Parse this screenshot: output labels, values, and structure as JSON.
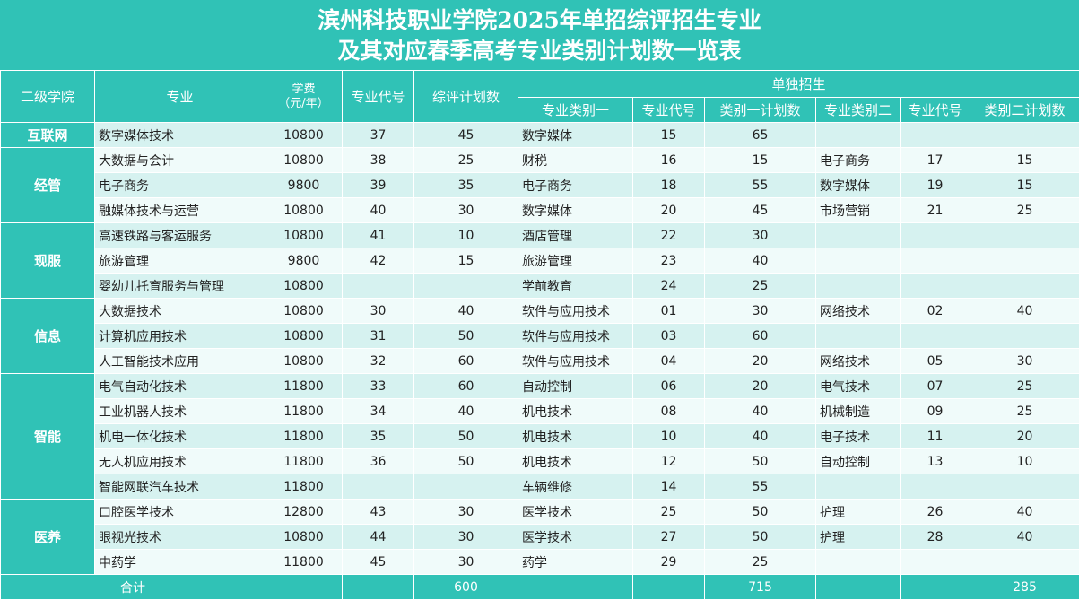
{
  "title": {
    "line1": "滨州科技职业学院2025年单招综评招生专业",
    "line2": "及其对应春季高考专业类别计划数一览表"
  },
  "headers": {
    "college": "二级学院",
    "major": "专业",
    "tuition": "学费",
    "tuition_unit": "（元/年）",
    "code": "专业代号",
    "plan": "综评计划数",
    "single": "单独招生",
    "cat1": "专业类别一",
    "cat1_code": "专业代号",
    "cat1_plan": "类别一计划数",
    "cat2": "专业类别二",
    "cat2_code": "专业代号",
    "cat2_plan": "类别二计划数"
  },
  "colleges": [
    "互联网",
    "经管",
    "现服",
    "信息",
    "智能",
    "医养"
  ],
  "rows": [
    {
      "major": "数字媒体技术",
      "fee": "10800",
      "code": "37",
      "plan": "45",
      "c1": "数字媒体",
      "c1code": "15",
      "c1plan": "65",
      "c2": "",
      "c2code": "",
      "c2plan": ""
    },
    {
      "major": "大数据与会计",
      "fee": "10800",
      "code": "38",
      "plan": "25",
      "c1": "财税",
      "c1code": "16",
      "c1plan": "15",
      "c2": "电子商务",
      "c2code": "17",
      "c2plan": "15"
    },
    {
      "major": "电子商务",
      "fee": "9800",
      "code": "39",
      "plan": "35",
      "c1": "电子商务",
      "c1code": "18",
      "c1plan": "55",
      "c2": "数字媒体",
      "c2code": "19",
      "c2plan": "15"
    },
    {
      "major": "融媒体技术与运营",
      "fee": "10800",
      "code": "40",
      "plan": "30",
      "c1": "数字媒体",
      "c1code": "20",
      "c1plan": "45",
      "c2": "市场营销",
      "c2code": "21",
      "c2plan": "25"
    },
    {
      "major": "高速铁路与客运服务",
      "fee": "10800",
      "code": "41",
      "plan": "10",
      "c1": "酒店管理",
      "c1code": "22",
      "c1plan": "30",
      "c2": "",
      "c2code": "",
      "c2plan": ""
    },
    {
      "major": "旅游管理",
      "fee": "9800",
      "code": "42",
      "plan": "15",
      "c1": "旅游管理",
      "c1code": "23",
      "c1plan": "40",
      "c2": "",
      "c2code": "",
      "c2plan": ""
    },
    {
      "major": "婴幼儿托育服务与管理",
      "fee": "10800",
      "code": "",
      "plan": "",
      "c1": "学前教育",
      "c1code": "24",
      "c1plan": "25",
      "c2": "",
      "c2code": "",
      "c2plan": ""
    },
    {
      "major": "大数据技术",
      "fee": "10800",
      "code": "30",
      "plan": "40",
      "c1": "软件与应用技术",
      "c1code": "01",
      "c1plan": "30",
      "c2": "网络技术",
      "c2code": "02",
      "c2plan": "40"
    },
    {
      "major": "计算机应用技术",
      "fee": "10800",
      "code": "31",
      "plan": "50",
      "c1": "软件与应用技术",
      "c1code": "03",
      "c1plan": "60",
      "c2": "",
      "c2code": "",
      "c2plan": ""
    },
    {
      "major": "人工智能技术应用",
      "fee": "10800",
      "code": "32",
      "plan": "60",
      "c1": "软件与应用技术",
      "c1code": "04",
      "c1plan": "20",
      "c2": "网络技术",
      "c2code": "05",
      "c2plan": "30"
    },
    {
      "major": "电气自动化技术",
      "fee": "11800",
      "code": "33",
      "plan": "60",
      "c1": "自动控制",
      "c1code": "06",
      "c1plan": "20",
      "c2": "电气技术",
      "c2code": "07",
      "c2plan": "25"
    },
    {
      "major": "工业机器人技术",
      "fee": "11800",
      "code": "34",
      "plan": "40",
      "c1": "机电技术",
      "c1code": "08",
      "c1plan": "40",
      "c2": "机械制造",
      "c2code": "09",
      "c2plan": "25"
    },
    {
      "major": "机电一体化技术",
      "fee": "11800",
      "code": "35",
      "plan": "50",
      "c1": "机电技术",
      "c1code": "10",
      "c1plan": "40",
      "c2": "电子技术",
      "c2code": "11",
      "c2plan": "20"
    },
    {
      "major": "无人机应用技术",
      "fee": "11800",
      "code": "36",
      "plan": "50",
      "c1": "机电技术",
      "c1code": "12",
      "c1plan": "50",
      "c2": "自动控制",
      "c2code": "13",
      "c2plan": "10"
    },
    {
      "major": "智能网联汽车技术",
      "fee": "11800",
      "code": "",
      "plan": "",
      "c1": "车辆维修",
      "c1code": "14",
      "c1plan": "55",
      "c2": "",
      "c2code": "",
      "c2plan": ""
    },
    {
      "major": "口腔医学技术",
      "fee": "12800",
      "code": "43",
      "plan": "30",
      "c1": "医学技术",
      "c1code": "25",
      "c1plan": "50",
      "c2": "护理",
      "c2code": "26",
      "c2plan": "40"
    },
    {
      "major": "眼视光技术",
      "fee": "10800",
      "code": "44",
      "plan": "30",
      "c1": "医学技术",
      "c1code": "27",
      "c1plan": "50",
      "c2": "护理",
      "c2code": "28",
      "c2plan": "40"
    },
    {
      "major": "中药学",
      "fee": "11800",
      "code": "45",
      "plan": "30",
      "c1": "药学",
      "c1code": "29",
      "c1plan": "25",
      "c2": "",
      "c2code": "",
      "c2plan": ""
    }
  ],
  "total": {
    "label": "合计",
    "plan": "600",
    "c1plan": "715",
    "c2plan": "285"
  }
}
